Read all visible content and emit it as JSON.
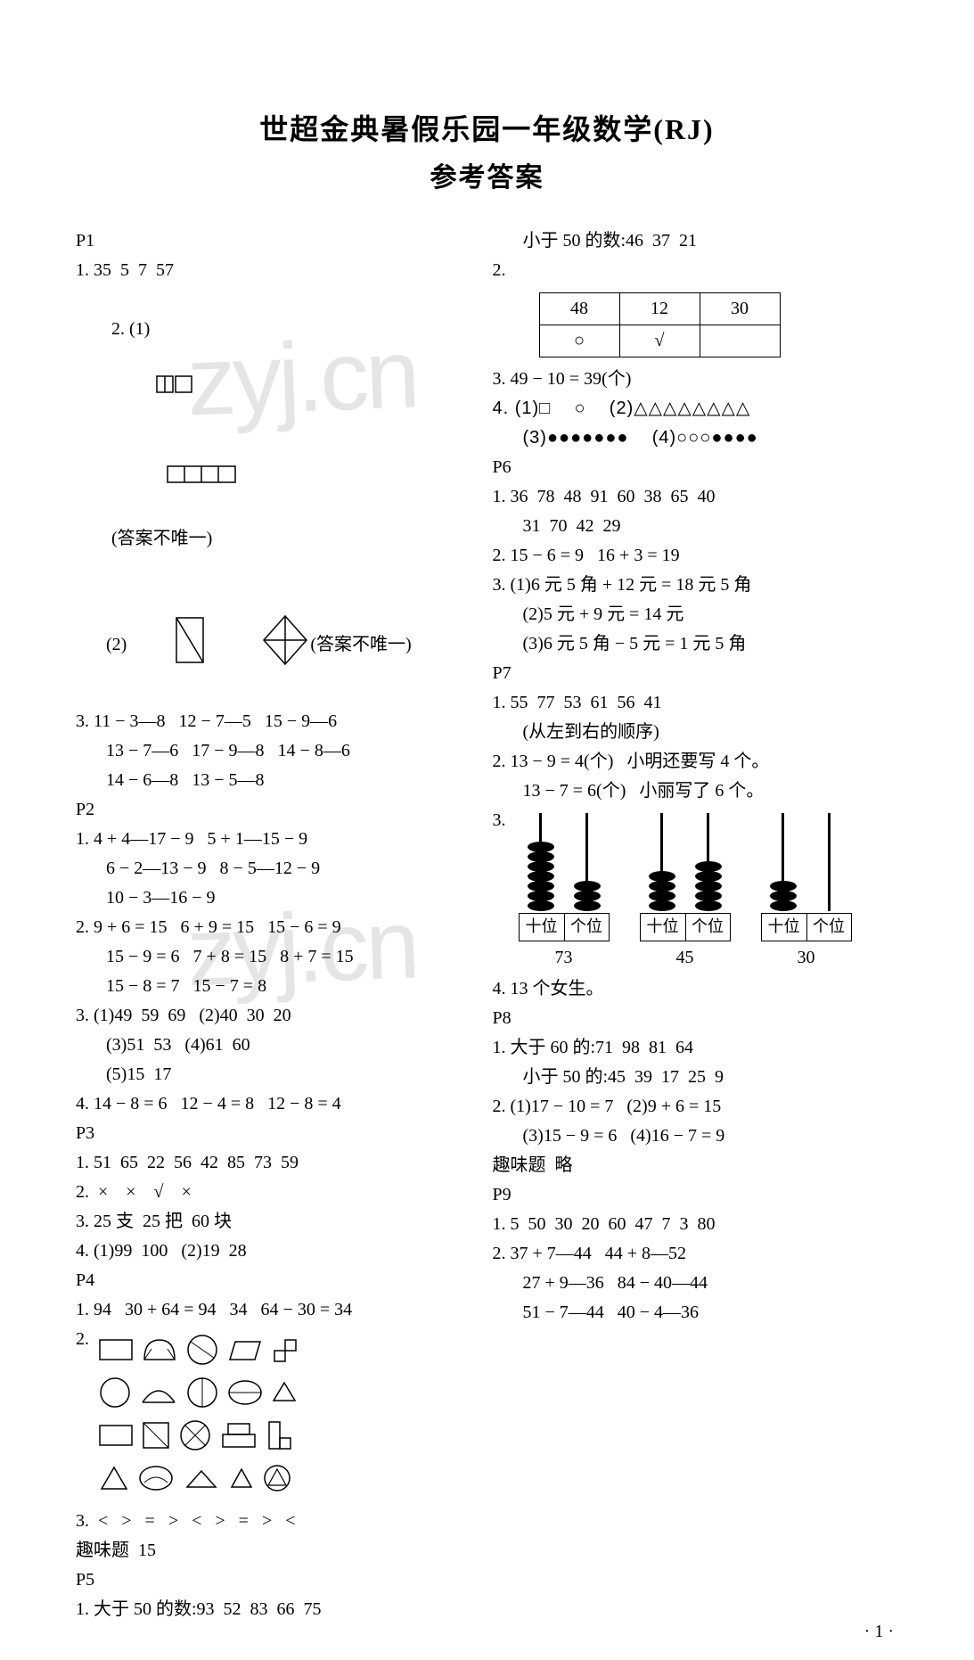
{
  "title_main": "世超金典暑假乐园一年级数学(RJ)",
  "title_sub": "参考答案",
  "page_number_label": "· 1 ·",
  "watermark1": "zyj.cn",
  "watermark2": "zyj.cn",
  "left": {
    "p1_label": "P1",
    "p1_q1": "1. 35  5  7  57",
    "p1_q2_1_prefix": "2. (1)",
    "p1_q2_1_suffix": "(答案不唯一)",
    "p1_q2_2_prefix": "(2)",
    "p1_q2_2_suffix": "(答案不唯一)",
    "p1_q3_l1": "3. 11 − 3—8   12 − 7—5   15 − 9—6",
    "p1_q3_l2": "13 − 7—6   17 − 9—8   14 − 8—6",
    "p1_q3_l3": "14 − 6—8   13 − 5—8",
    "p2_label": "P2",
    "p2_q1_l1": "1. 4 + 4—17 − 9   5 + 1—15 − 9",
    "p2_q1_l2": "6 − 2—13 − 9   8 − 5—12 − 9",
    "p2_q1_l3": "10 − 3—16 − 9",
    "p2_q2_l1": "2. 9 + 6 = 15   6 + 9 = 15   15 − 6 = 9",
    "p2_q2_l2": "15 − 9 = 6   7 + 8 = 15   8 + 7 = 15",
    "p2_q2_l3": "15 − 8 = 7   15 − 7 = 8",
    "p2_q3_l1": "3. (1)49  59  69   (2)40  30  20",
    "p2_q3_l2": "(3)51  53   (4)61  60",
    "p2_q3_l3": "(5)15  17",
    "p2_q4": "4. 14 − 8 = 6   12 − 4 = 8   12 − 8 = 4",
    "p3_label": "P3",
    "p3_q1": "1. 51  65  22  56  42  85  73  59",
    "p3_q2": "2.  ×    ×    √    ×",
    "p3_q3": "3. 25 支  25 把  60 块",
    "p3_q4": "4. (1)99  100   (2)19  28",
    "p4_label": "P4",
    "p4_q1": "1. 94   30 + 64 = 94   34   64 − 30 = 34",
    "p4_q2_prefix": "2.",
    "p4_q3": "3.  <   >   =   >   <   >   =   >   <",
    "p4_fun": "趣味题  15",
    "p5_label": "P5",
    "p5_q1": "1. 大于 50 的数:93  52  83  66  75"
  },
  "right": {
    "p5_q1_cont": "小于 50 的数:46  37  21",
    "p5_q2_prefix": "2.",
    "p5_table": {
      "r1": [
        "48",
        "12",
        "30"
      ],
      "r2": [
        "○",
        "√",
        ""
      ]
    },
    "p5_q3": "3. 49 − 10 = 39(个)",
    "p5_q4_l1": "4. (1)□    ○    (2)△△△△△△△△",
    "p5_q4_l2": "(3)●●●●●●●    (4)○○○●●●●",
    "p6_label": "P6",
    "p6_q1_l1": "1. 36  78  48  91  60  38  65  40",
    "p6_q1_l2": "31  70  42  29",
    "p6_q2": "2. 15 − 6 = 9   16 + 3 = 19",
    "p6_q3_l1": "3. (1)6 元 5 角 + 12 元 = 18 元 5 角",
    "p6_q3_l2": "(2)5 元 + 9 元 = 14 元",
    "p6_q3_l3": "(3)6 元 5 角 − 5 元 = 1 元 5 角",
    "p7_label": "P7",
    "p7_q1_l1": "1. 55  77  53  61  56  41",
    "p7_q1_l2": "(从左到右的顺序)",
    "p7_q2_l1": "2. 13 − 9 = 4(个)   小明还要写 4 个。",
    "p7_q2_l2": "13 − 7 = 6(个)   小丽写了 6 个。",
    "p7_q3_prefix": "3.",
    "p7_abacus": {
      "label_tens": "十位",
      "label_ones": "个位",
      "items": [
        {
          "tens": 7,
          "ones": 3,
          "num": "73"
        },
        {
          "tens": 4,
          "ones": 5,
          "num": "45"
        },
        {
          "tens": 3,
          "ones": 0,
          "num": "30"
        }
      ]
    },
    "p7_q4": "4. 13 个女生。",
    "p8_label": "P8",
    "p8_q1_l1": "1. 大于 60 的:71  98  81  64",
    "p8_q1_l2": "小于 50 的:45  39  17  25  9",
    "p8_q2_l1": "2. (1)17 − 10 = 7   (2)9 + 6 = 15",
    "p8_q2_l2": "(3)15 − 9 = 6   (4)16 − 7 = 9",
    "p8_fun": "趣味题  略",
    "p9_label": "P9",
    "p9_q1": "1. 5  50  30  20  60  47  7  3  80",
    "p9_q2_l1": "2. 37 + 7—44   44 + 8—52",
    "p9_q2_l2": "27 + 9—36   84 − 40—44",
    "p9_q2_l3": "51 − 7—44   40 − 4—36"
  }
}
